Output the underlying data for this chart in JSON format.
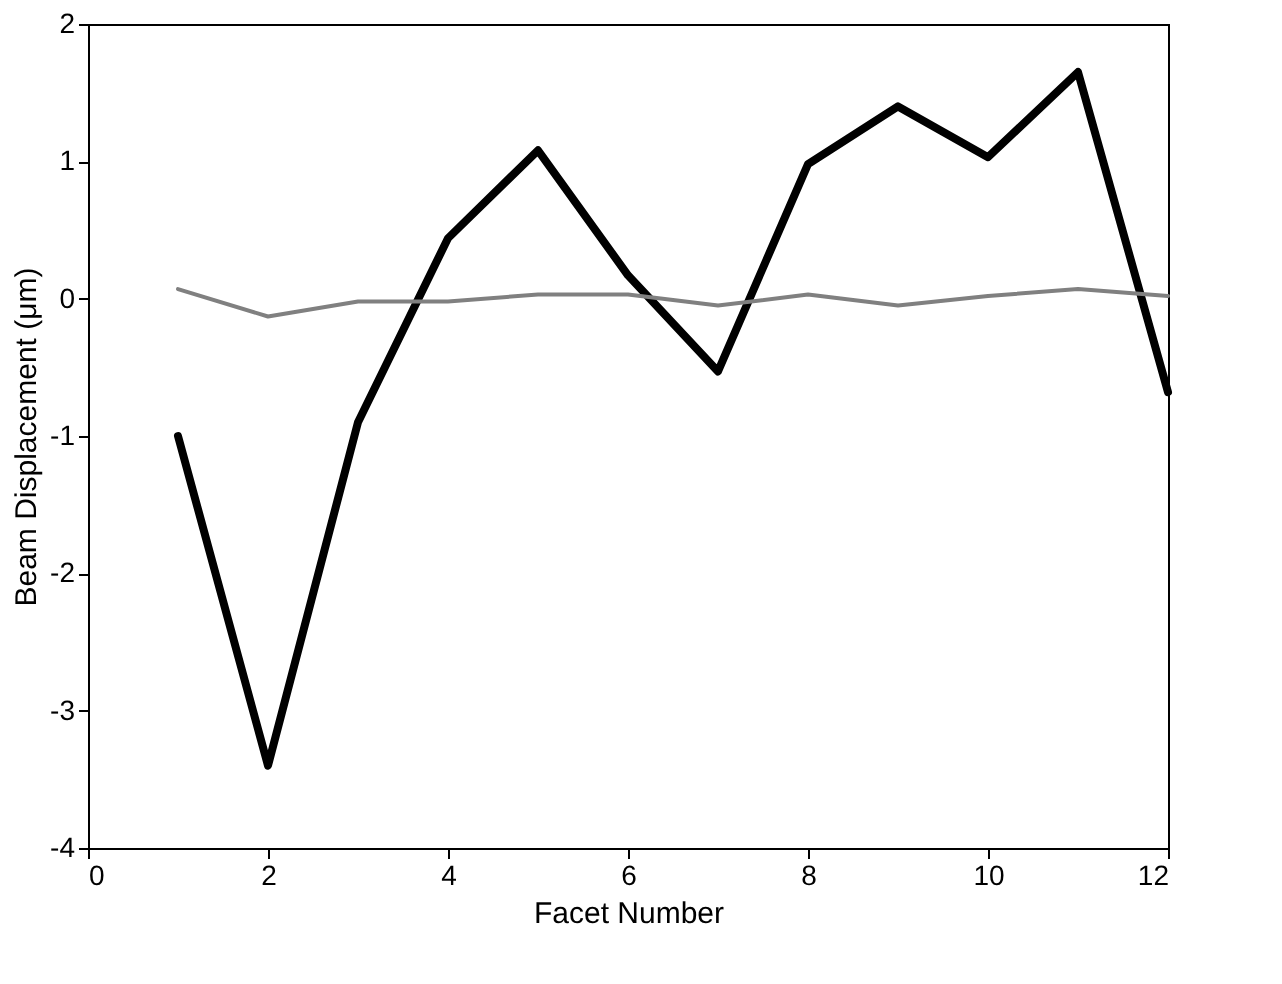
{
  "chart_data": {
    "type": "line",
    "xlabel": "Facet Number",
    "ylabel": "Beam Displacement (μm)",
    "x": [
      1,
      2,
      3,
      4,
      5,
      6,
      7,
      8,
      9,
      10,
      11,
      12
    ],
    "series": [
      {
        "color": "#000000",
        "values": [
          -1.0,
          -3.4,
          -0.9,
          0.44,
          1.08,
          0.17,
          -0.53,
          0.98,
          1.4,
          1.03,
          1.65,
          -0.68
        ]
      },
      {
        "color": "#808080",
        "values": [
          0.07,
          -0.13,
          -0.02,
          -0.02,
          0.03,
          0.03,
          -0.05,
          0.03,
          -0.05,
          0.02,
          0.07,
          0.02
        ]
      }
    ],
    "xlim": [
      0,
      12
    ],
    "xticks": [
      0,
      2,
      4,
      6,
      8,
      10,
      12
    ],
    "ylim": [
      -4,
      2
    ],
    "yticks": [
      -4,
      -3,
      -2,
      -1,
      0,
      1,
      2
    ],
    "grid": false,
    "marker": "none",
    "line_style": "solid"
  }
}
